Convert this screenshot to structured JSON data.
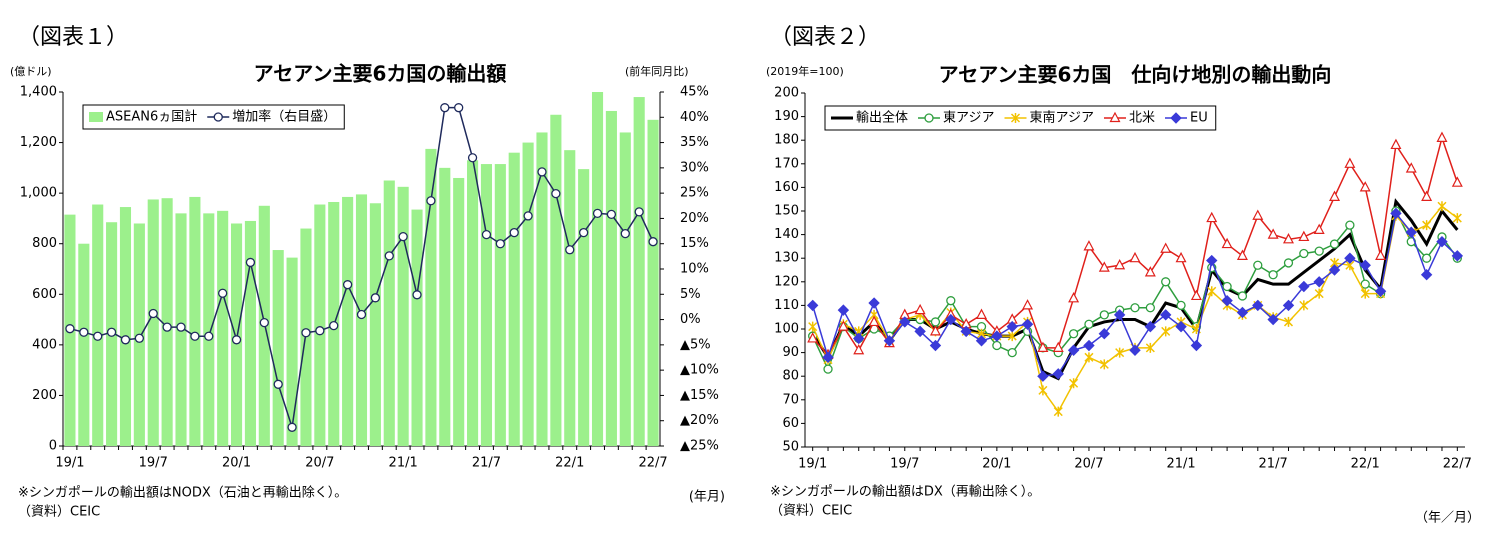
{
  "chart_data": [
    {
      "type": "bar",
      "figure_label": "（図表１）",
      "title": "アセアン主要6カ国の輸出額",
      "y_label": "(億ドル)",
      "y2_label": "(前年同月比)",
      "x_label": "(年月)",
      "notes": [
        "※シンガポールの輸出額はNODX（石油と再輸出除く）。",
        "（資料）CEIC"
      ],
      "categories": [
        "19/1",
        null,
        null,
        null,
        null,
        null,
        "19/7",
        null,
        null,
        null,
        null,
        null,
        "20/1",
        null,
        null,
        null,
        null,
        null,
        "20/7",
        null,
        null,
        null,
        null,
        null,
        "21/1",
        null,
        null,
        null,
        null,
        null,
        "21/7",
        null,
        null,
        null,
        null,
        null,
        "22/1",
        null,
        null,
        null,
        null,
        null,
        "22/7"
      ],
      "series": [
        {
          "name": "ASEAN6ヵ国計",
          "color": "#9cf08c",
          "values": [
            915,
            800,
            955,
            885,
            945,
            880,
            975,
            980,
            920,
            985,
            920,
            930,
            880,
            890,
            950,
            775,
            745,
            860,
            955,
            965,
            985,
            995,
            960,
            1050,
            1025,
            935,
            1175,
            1100,
            1060,
            1130,
            1115,
            1115,
            1160,
            1200,
            1240,
            1310,
            1170,
            1095,
            1400,
            1325,
            1240,
            1380,
            1290
          ]
        },
        {
          "name": "増加率（右目盛）",
          "type": "line",
          "axis": "y2",
          "color": "#1f2a5c",
          "marker": "circle",
          "values": [
            -1.8,
            -2.5,
            -3.3,
            -2.5,
            -4,
            -3.7,
            1.2,
            -1.5,
            -1.5,
            -3.3,
            -3.3,
            5.2,
            -4,
            11.3,
            -0.6,
            -12.8,
            -21.3,
            -2.6,
            -2.2,
            -1.2,
            6.9,
            1,
            4.3,
            12.6,
            16.4,
            4.9,
            23.5,
            41.9,
            41.9,
            32,
            16.8,
            15,
            17.2,
            20.5,
            29.2,
            24.9,
            13.8,
            17.2,
            21,
            20.8,
            17,
            21.3,
            15.4
          ]
        }
      ],
      "ylim": [
        0,
        1400
      ],
      "yticks": [
        0,
        200,
        400,
        600,
        800,
        {
          "value": 1000,
          "label": "1,000"
        },
        {
          "value": 1200,
          "label": "1,200"
        },
        {
          "value": 1400,
          "label": "1,400"
        }
      ],
      "y2lim": [
        -25,
        45
      ],
      "y2ticks": [
        {
          "value": 45,
          "label": "45%"
        },
        {
          "value": 40,
          "label": "40%"
        },
        {
          "value": 35,
          "label": "35%"
        },
        {
          "value": 30,
          "label": "30%"
        },
        {
          "value": 25,
          "label": "25%"
        },
        {
          "value": 20,
          "label": "20%"
        },
        {
          "value": 15,
          "label": "15%"
        },
        {
          "value": 10,
          "label": "10%"
        },
        {
          "value": 5,
          "label": "5%"
        },
        {
          "value": 0,
          "label": "0%"
        },
        {
          "value": -5,
          "label": "▲5%"
        },
        {
          "value": -10,
          "label": "▲10%"
        },
        {
          "value": -15,
          "label": "▲15%"
        },
        {
          "value": -20,
          "label": "▲20%"
        },
        {
          "value": -25,
          "label": "▲25%"
        }
      ],
      "grid": false,
      "legend": "top-left"
    },
    {
      "type": "line",
      "figure_label": "（図表２）",
      "title": "アセアン主要6カ国　仕向け地別の輸出動向",
      "y_label": "(2019年=100)",
      "x_label": "（年／月）",
      "notes": [
        "※シンガポールの輸出額はDX（再輸出除く）。",
        "（資料）CEIC"
      ],
      "categories": [
        "19/1",
        null,
        null,
        null,
        null,
        null,
        "19/7",
        null,
        null,
        null,
        null,
        null,
        "20/1",
        null,
        null,
        null,
        null,
        null,
        "20/7",
        null,
        null,
        null,
        null,
        null,
        "21/1",
        null,
        null,
        null,
        null,
        null,
        "21/7",
        null,
        null,
        null,
        null,
        null,
        "22/1",
        null,
        null,
        null,
        null,
        null,
        "22/7"
      ],
      "series": [
        {
          "name": "輸出全体",
          "color": "#000000",
          "marker": "none",
          "line_width": 3,
          "values": [
            98,
            88,
            102,
            97,
            103,
            95,
            104,
            104,
            100,
            103,
            100,
            98,
            97,
            97,
            100,
            82,
            79,
            92,
            101,
            103,
            104,
            104,
            101,
            111,
            109,
            100,
            125,
            117,
            114,
            121,
            119,
            119,
            124,
            129,
            134,
            140,
            125,
            117,
            154,
            146,
            136,
            150,
            142
          ]
        },
        {
          "name": "東アジア",
          "color": "#2e9e3e",
          "marker": "circle",
          "line_width": 1.5,
          "values": [
            97,
            83,
            101,
            96,
            100,
            97,
            104,
            104,
            103,
            112,
            101,
            101,
            93,
            90,
            99,
            92,
            90,
            98,
            102,
            106,
            108,
            109,
            109,
            120,
            110,
            101,
            126,
            118,
            114,
            127,
            123,
            128,
            132,
            133,
            136,
            144,
            119,
            115,
            150,
            137,
            130,
            139,
            130
          ]
        },
        {
          "name": "東南アジア",
          "color": "#f2c200",
          "marker": "star",
          "line_width": 1.5,
          "values": [
            101,
            87,
            102,
            99,
            106,
            95,
            104,
            106,
            99,
            107,
            99,
            98,
            97,
            97,
            103,
            74,
            65,
            77,
            88,
            85,
            90,
            92,
            92,
            99,
            103,
            100,
            116,
            110,
            106,
            110,
            105,
            103,
            110,
            115,
            128,
            127,
            115,
            115,
            148,
            141,
            144,
            152,
            147
          ]
        },
        {
          "name": "北米",
          "color": "#e0201b",
          "marker": "triangle",
          "line_width": 1.5,
          "values": [
            96,
            89,
            101,
            91,
            103,
            94,
            106,
            108,
            99,
            106,
            102,
            106,
            99,
            104,
            110,
            92,
            92,
            113,
            135,
            126,
            127,
            130,
            124,
            134,
            130,
            114,
            147,
            136,
            131,
            148,
            140,
            138,
            139,
            142,
            156,
            170,
            160,
            131,
            178,
            168,
            156,
            181,
            162
          ]
        },
        {
          "name": "EU",
          "color": "#3a3ad8",
          "marker": "diamond",
          "line_width": 1.5,
          "values": [
            110,
            88,
            108,
            96,
            111,
            95,
            103,
            99,
            93,
            104,
            99,
            95,
            97,
            101,
            102,
            80,
            81,
            91,
            93,
            98,
            106,
            91,
            101,
            106,
            101,
            93,
            129,
            112,
            107,
            110,
            104,
            110,
            118,
            120,
            125,
            130,
            127,
            116,
            149,
            141,
            123,
            137,
            131
          ]
        }
      ],
      "ylim": [
        50,
        200
      ],
      "yticks": [
        50,
        60,
        70,
        80,
        90,
        100,
        110,
        120,
        130,
        140,
        150,
        160,
        170,
        180,
        190,
        200
      ],
      "grid": false,
      "legend": "top-left"
    }
  ]
}
